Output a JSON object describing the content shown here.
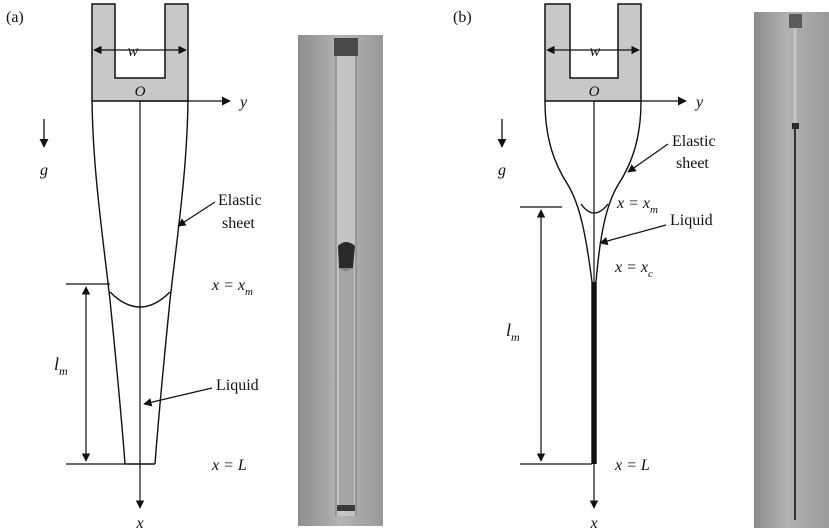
{
  "colors": {
    "ink": "#111111",
    "clamp": "#c8c8c8",
    "background": "#ffffff"
  },
  "panel_a": {
    "label": "(a)",
    "width_label": "w",
    "origin_label": "O",
    "y_axis_label": "y",
    "x_axis_label": "x",
    "gravity_label": "g",
    "sheet_label_line1": "Elastic",
    "sheet_label_line2": "sheet",
    "meniscus_label": "x = x",
    "meniscus_sub": "m",
    "length_label": "l",
    "length_sub": "m",
    "liquid_label": "Liquid",
    "end_label": "x = L"
  },
  "panel_b": {
    "label": "(b)",
    "width_label": "w",
    "origin_label": "O",
    "y_axis_label": "y",
    "x_axis_label": "x",
    "gravity_label": "g",
    "sheet_label_line1": "Elastic",
    "sheet_label_line2": "sheet",
    "meniscus_label": "x = x",
    "meniscus_sub": "m",
    "contact_label": "x = x",
    "contact_sub": "c",
    "length_label": "l",
    "length_sub": "m",
    "liquid_label": "Liquid",
    "end_label": "x = L"
  },
  "photos": {
    "a": "experimental-photo-a",
    "b": "experimental-photo-b"
  }
}
